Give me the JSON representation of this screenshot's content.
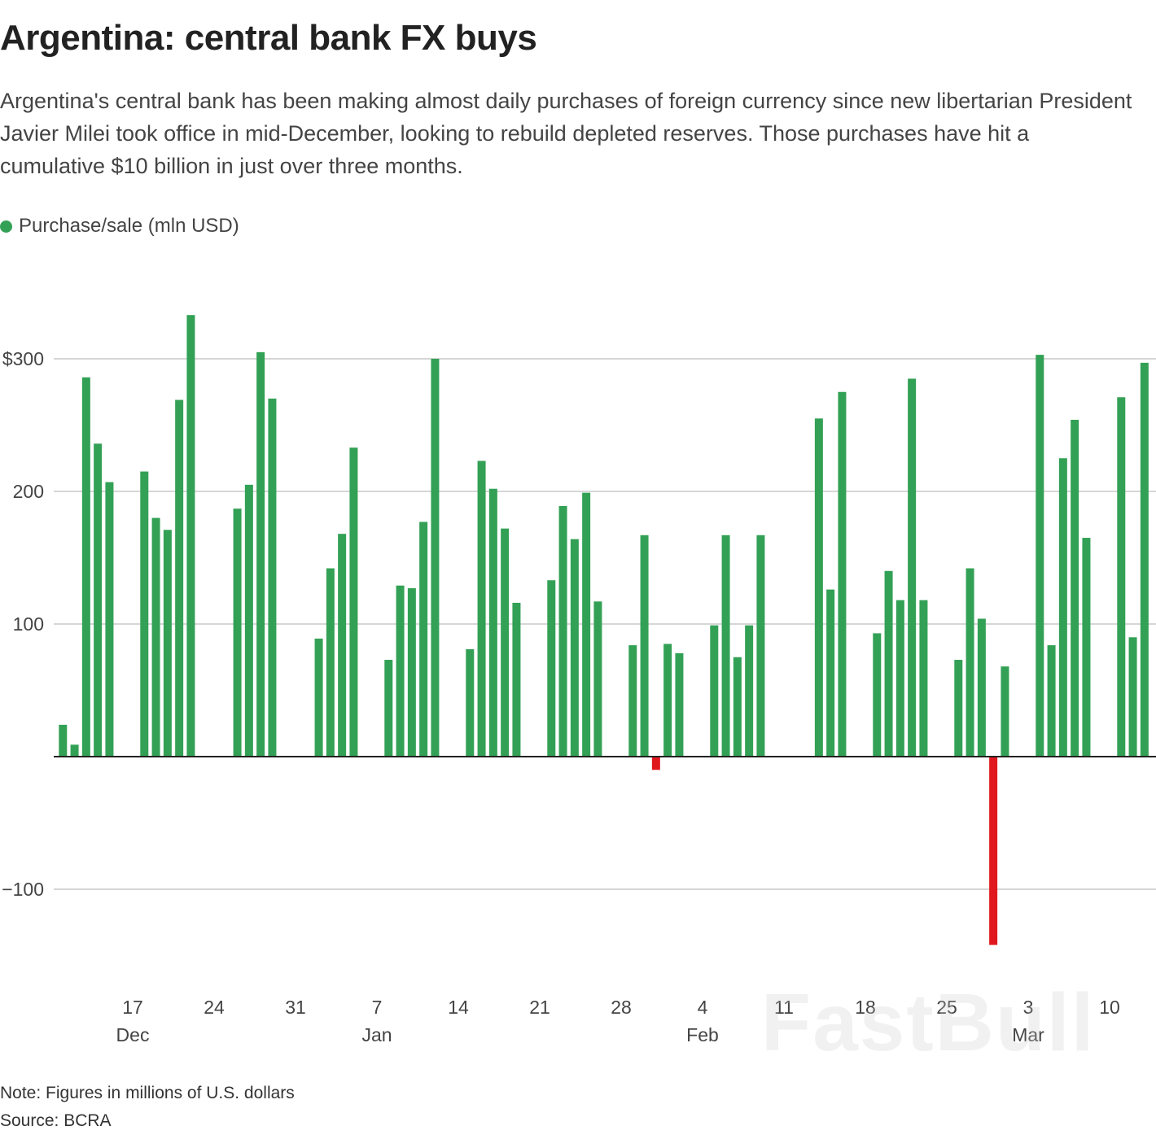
{
  "title": "Argentina: central bank FX buys",
  "subtitle": "Argentina's central bank has been making almost daily purchases of foreign currency since new libertarian President Javier Milei took office in mid-December, looking to rebuild depleted reserves. Those purchases have hit a cumulative $10 billion in just over three months.",
  "legend": {
    "label": "Purchase/sale (mln USD)",
    "color": "#33a155"
  },
  "note": "Note: Figures in millions of U.S. dollars",
  "source": "Source: BCRA",
  "watermark": "FastBull",
  "chart_data": {
    "type": "bar",
    "title": "Argentina: central bank FX buys",
    "ylabel": "",
    "xlabel": "",
    "ylim": [
      -170,
      340
    ],
    "grid": true,
    "legend_position": "top-left",
    "colors": {
      "positive": "#33a155",
      "negative": "#e0181e",
      "grid": "#c8c8c8",
      "axis": "#222222"
    },
    "y_ticks": [
      {
        "value": 300,
        "label": "$300"
      },
      {
        "value": 200,
        "label": "200"
      },
      {
        "value": 100,
        "label": "100"
      },
      {
        "value": -100,
        "label": "−100"
      }
    ],
    "x_ticks": [
      {
        "date": "2023-12-17",
        "day": "17",
        "month": "Dec"
      },
      {
        "date": "2023-12-24",
        "day": "24",
        "month": ""
      },
      {
        "date": "2023-12-31",
        "day": "31",
        "month": ""
      },
      {
        "date": "2024-01-07",
        "day": "7",
        "month": "Jan"
      },
      {
        "date": "2024-01-14",
        "day": "14",
        "month": ""
      },
      {
        "date": "2024-01-21",
        "day": "21",
        "month": ""
      },
      {
        "date": "2024-01-28",
        "day": "28",
        "month": ""
      },
      {
        "date": "2024-02-04",
        "day": "4",
        "month": "Feb"
      },
      {
        "date": "2024-02-11",
        "day": "11",
        "month": ""
      },
      {
        "date": "2024-02-18",
        "day": "18",
        "month": ""
      },
      {
        "date": "2024-02-25",
        "day": "25",
        "month": ""
      },
      {
        "date": "2024-03-03",
        "day": "3",
        "month": "Mar"
      },
      {
        "date": "2024-03-10",
        "day": "10",
        "month": ""
      }
    ],
    "series": [
      {
        "name": "Purchase/sale (mln USD)",
        "points": [
          [
            "2023-12-11",
            24
          ],
          [
            "2023-12-12",
            9
          ],
          [
            "2023-12-13",
            286
          ],
          [
            "2023-12-14",
            236
          ],
          [
            "2023-12-15",
            207
          ],
          [
            "2023-12-18",
            215
          ],
          [
            "2023-12-19",
            180
          ],
          [
            "2023-12-20",
            171
          ],
          [
            "2023-12-21",
            269
          ],
          [
            "2023-12-22",
            333
          ],
          [
            "2023-12-26",
            187
          ],
          [
            "2023-12-27",
            205
          ],
          [
            "2023-12-28",
            305
          ],
          [
            "2023-12-29",
            270
          ],
          [
            "2024-01-02",
            89
          ],
          [
            "2024-01-03",
            142
          ],
          [
            "2024-01-04",
            168
          ],
          [
            "2024-01-05",
            233
          ],
          [
            "2024-01-08",
            73
          ],
          [
            "2024-01-09",
            129
          ],
          [
            "2024-01-10",
            127
          ],
          [
            "2024-01-11",
            177
          ],
          [
            "2024-01-12",
            300
          ],
          [
            "2024-01-15",
            81
          ],
          [
            "2024-01-16",
            223
          ],
          [
            "2024-01-17",
            202
          ],
          [
            "2024-01-18",
            172
          ],
          [
            "2024-01-19",
            116
          ],
          [
            "2024-01-22",
            133
          ],
          [
            "2024-01-23",
            189
          ],
          [
            "2024-01-24",
            164
          ],
          [
            "2024-01-25",
            199
          ],
          [
            "2024-01-26",
            117
          ],
          [
            "2024-01-29",
            84
          ],
          [
            "2024-01-30",
            167
          ],
          [
            "2024-01-31",
            -10
          ],
          [
            "2024-02-01",
            85
          ],
          [
            "2024-02-02",
            78
          ],
          [
            "2024-02-05",
            99
          ],
          [
            "2024-02-06",
            167
          ],
          [
            "2024-02-07",
            75
          ],
          [
            "2024-02-08",
            99
          ],
          [
            "2024-02-09",
            167
          ],
          [
            "2024-02-14",
            255
          ],
          [
            "2024-02-15",
            126
          ],
          [
            "2024-02-16",
            275
          ],
          [
            "2024-02-19",
            93
          ],
          [
            "2024-02-20",
            140
          ],
          [
            "2024-02-21",
            118
          ],
          [
            "2024-02-22",
            285
          ],
          [
            "2024-02-23",
            118
          ],
          [
            "2024-02-26",
            73
          ],
          [
            "2024-02-27",
            142
          ],
          [
            "2024-02-28",
            104
          ],
          [
            "2024-02-29",
            -142
          ],
          [
            "2024-03-01",
            68
          ],
          [
            "2024-03-04",
            303
          ],
          [
            "2024-03-05",
            84
          ],
          [
            "2024-03-06",
            225
          ],
          [
            "2024-03-07",
            254
          ],
          [
            "2024-03-08",
            165
          ],
          [
            "2024-03-11",
            271
          ],
          [
            "2024-03-12",
            90
          ],
          [
            "2024-03-13",
            297
          ]
        ]
      }
    ]
  }
}
